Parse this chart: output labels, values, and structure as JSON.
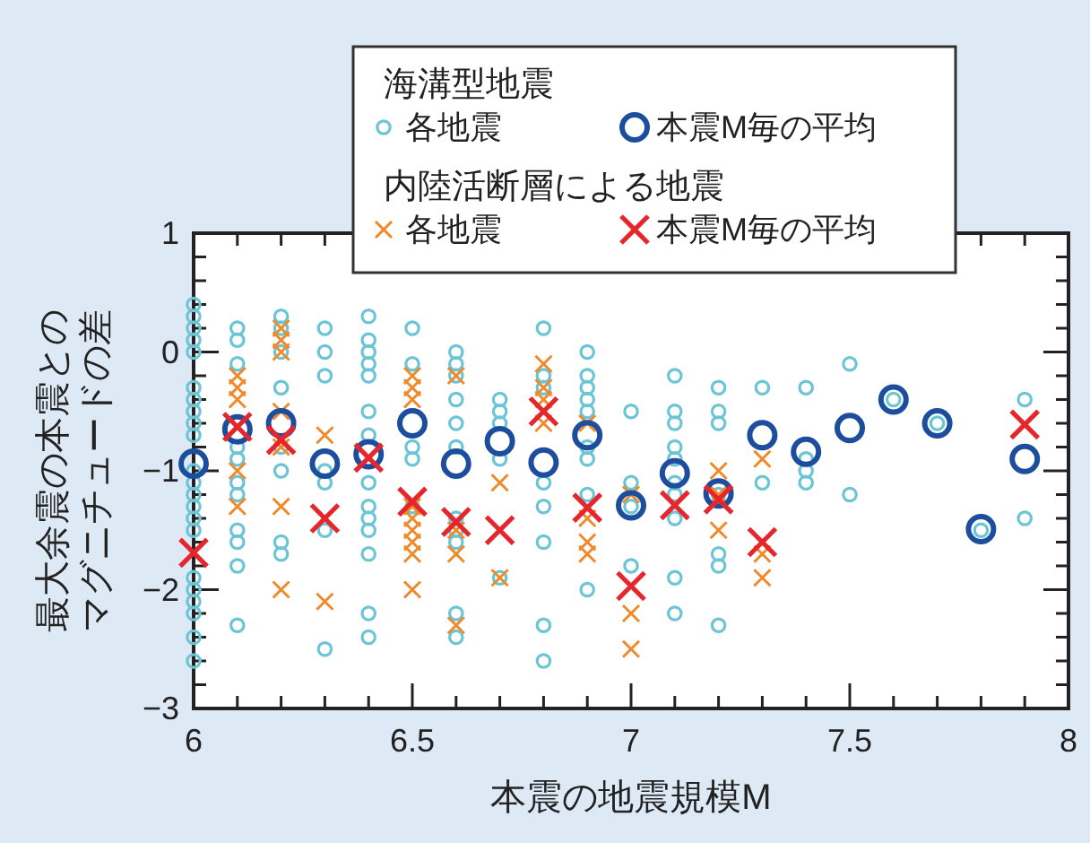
{
  "chart_data": {
    "type": "scatter",
    "xlabel": "本震の地震規模M",
    "ylabel": [
      "最大余震の本震との",
      "マグニチュードの差"
    ],
    "annotations": [
      "海溝型地震",
      "内陸活断層による地震"
    ],
    "xlim": [
      6,
      8
    ],
    "ylim": [
      -3,
      1
    ],
    "xticks": [
      6,
      {
        "value": 6.1,
        "label": null
      },
      {
        "value": 6.2,
        "label": null
      },
      {
        "value": 6.3,
        "label": null
      },
      {
        "value": 6.4,
        "label": null
      },
      6.5,
      {
        "value": 6.6,
        "label": null
      },
      {
        "value": 6.7,
        "label": null
      },
      {
        "value": 6.8,
        "label": null
      },
      {
        "value": 6.9,
        "label": null
      },
      7,
      {
        "value": 7.1,
        "label": null
      },
      {
        "value": 7.2,
        "label": null
      },
      {
        "value": 7.3,
        "label": null
      },
      {
        "value": 7.4,
        "label": null
      },
      7.5,
      {
        "value": 7.6,
        "label": null
      },
      {
        "value": 7.7,
        "label": null
      },
      {
        "value": 7.8,
        "label": null
      },
      {
        "value": 7.9,
        "label": null
      },
      8
    ],
    "yticks": [
      {
        "value": -3,
        "label": "−3"
      },
      {
        "value": -2.8,
        "label": null
      },
      {
        "value": -2.6,
        "label": null
      },
      {
        "value": -2.4,
        "label": null
      },
      {
        "value": -2.2,
        "label": null
      },
      {
        "value": -2,
        "label": "−2"
      },
      {
        "value": -1.8,
        "label": null
      },
      {
        "value": -1.6,
        "label": null
      },
      {
        "value": -1.4,
        "label": null
      },
      {
        "value": -1.2,
        "label": null
      },
      {
        "value": -1,
        "label": "−1"
      },
      {
        "value": -0.8,
        "label": null
      },
      {
        "value": -0.6,
        "label": null
      },
      {
        "value": -0.4,
        "label": null
      },
      {
        "value": -0.2,
        "label": null
      },
      0,
      {
        "value": 0.2,
        "label": null
      },
      {
        "value": 0.4,
        "label": null
      },
      {
        "value": 0.6,
        "label": null
      },
      {
        "value": 0.8,
        "label": null
      },
      1
    ],
    "grid": false,
    "legend": "top",
    "series": [
      {
        "name": "各地震",
        "color": "#6cc5d6",
        "marker": "circle",
        "x": [
          6,
          6,
          6,
          6,
          6,
          6,
          6,
          6,
          6,
          6,
          6,
          6,
          6,
          6,
          6,
          6,
          6,
          6,
          6,
          6,
          6,
          6,
          6.1,
          6.1,
          6.1,
          6.1,
          6.1,
          6.1,
          6.1,
          6.1,
          6.1,
          6.1,
          6.1,
          6.2,
          6.2,
          6.2,
          6.2,
          6.2,
          6.2,
          6.2,
          6.2,
          6.3,
          6.3,
          6.3,
          6.3,
          6.3,
          6.3,
          6.3,
          6.4,
          6.4,
          6.4,
          6.4,
          6.4,
          6.4,
          6.4,
          6.4,
          6.4,
          6.4,
          6.4,
          6.4,
          6.4,
          6.4,
          6.5,
          6.5,
          6.5,
          6.5,
          6.5,
          6.6,
          6.6,
          6.6,
          6.6,
          6.6,
          6.6,
          6.6,
          6.6,
          6.6,
          6.6,
          6.6,
          6.7,
          6.7,
          6.7,
          6.7,
          6.7,
          6.8,
          6.8,
          6.8,
          6.8,
          6.8,
          6.8,
          6.8,
          6.8,
          6.9,
          6.9,
          6.9,
          6.9,
          6.9,
          6.9,
          6.9,
          6.9,
          6.9,
          7,
          7,
          7,
          7,
          7.1,
          7.1,
          7.1,
          7.1,
          7.1,
          7.1,
          7.1,
          7.1,
          7.1,
          7.1,
          7.2,
          7.2,
          7.2,
          7.2,
          7.2,
          7.2,
          7.2,
          7.3,
          7.3,
          7.4,
          7.4,
          7.4,
          7.4,
          7.5,
          7.5,
          7.6,
          7.7,
          7.8,
          7.9,
          7.9
        ],
        "values": [
          0.4,
          0.3,
          0.2,
          0.1,
          0,
          -0.3,
          -0.4,
          -0.5,
          -0.6,
          -0.7,
          -1.0,
          -1.1,
          -1.2,
          -1.3,
          -1.4,
          -1.5,
          -1.9,
          -2.0,
          -2.1,
          -2.2,
          -2.4,
          -2.6,
          0.2,
          0.1,
          -0.1,
          -0.8,
          -0.9,
          -1.1,
          -1.2,
          -1.5,
          -1.6,
          -1.8,
          -2.3,
          0.3,
          0.2,
          0,
          -0.3,
          -0.8,
          -1.0,
          -1.6,
          -1.7,
          0.2,
          0,
          -0.2,
          -1.0,
          -1.1,
          -1.5,
          -2.5,
          0.3,
          0.1,
          0,
          -0.1,
          -0.2,
          -0.5,
          -0.7,
          -1.1,
          -1.3,
          -1.4,
          -1.5,
          -1.7,
          -2.2,
          -2.4,
          0.2,
          -0.1,
          -0.8,
          -0.9,
          -1.3,
          0,
          -0.1,
          -0.2,
          -0.4,
          -0.6,
          -0.8,
          -1.4,
          -1.5,
          -1.6,
          -2.2,
          -2.4,
          -0.4,
          -0.5,
          -0.6,
          -0.9,
          -1.9,
          0.2,
          -0.2,
          -0.3,
          -1.1,
          -1.3,
          -1.6,
          -2.3,
          -2.6,
          0,
          -0.2,
          -0.3,
          -0.4,
          -0.5,
          -0.8,
          -0.9,
          -1.2,
          -2.0,
          -0.5,
          -1.1,
          -1.3,
          -1.8,
          -0.2,
          -0.5,
          -0.6,
          -0.8,
          -0.9,
          -1.1,
          -1.2,
          -1.4,
          -1.9,
          -2.2,
          -0.3,
          -0.5,
          -0.6,
          -1.2,
          -1.7,
          -1.8,
          -2.3,
          -0.3,
          -1.1,
          -0.3,
          -0.9,
          -1.0,
          -1.1,
          -0.1,
          -1.2,
          -0.4,
          -0.6,
          -1.5,
          -0.4,
          -1.4
        ]
      },
      {
        "name": "各地震",
        "color": "#f0892a",
        "marker": "cross",
        "x": [
          6.1,
          6.1,
          6.1,
          6.1,
          6.1,
          6.2,
          6.2,
          6.2,
          6.2,
          6.2,
          6.2,
          6.2,
          6.3,
          6.3,
          6.5,
          6.5,
          6.5,
          6.5,
          6.5,
          6.5,
          6.5,
          6.5,
          6.5,
          6.6,
          6.6,
          6.6,
          6.6,
          6.7,
          6.7,
          6.8,
          6.8,
          6.8,
          6.8,
          6.9,
          6.9,
          6.9,
          6.9,
          7,
          7,
          7,
          7.2,
          7.2,
          7.2,
          7.3,
          7.3,
          7.3
        ],
        "values": [
          -0.2,
          -0.3,
          -0.4,
          -1.0,
          -1.3,
          0.2,
          0.1,
          0,
          -0.5,
          -0.8,
          -1.3,
          -2.0,
          -0.7,
          -2.1,
          -0.2,
          -0.3,
          -0.4,
          -1.3,
          -1.4,
          -1.5,
          -1.6,
          -1.7,
          -2.0,
          -0.2,
          -1.5,
          -1.7,
          -2.3,
          -1.1,
          -1.9,
          -0.1,
          -0.3,
          -0.4,
          -0.6,
          -0.6,
          -1.4,
          -1.6,
          -1.7,
          -1.2,
          -2.2,
          -2.5,
          -1.0,
          -1.2,
          -1.5,
          -0.9,
          -1.7,
          -1.9
        ]
      },
      {
        "name": "本震M毎の平均",
        "color": "#1d4e9e",
        "marker": "circle",
        "x": [
          6,
          6.1,
          6.2,
          6.3,
          6.4,
          6.5,
          6.6,
          6.7,
          6.8,
          6.9,
          7,
          7.1,
          7.2,
          7.3,
          7.4,
          7.5,
          7.6,
          7.7,
          7.8,
          7.9
        ],
        "values": [
          -0.94,
          -0.65,
          -0.6,
          -0.94,
          -0.86,
          -0.6,
          -0.94,
          -0.75,
          -0.93,
          -0.7,
          -1.29,
          -1.02,
          -1.19,
          -0.7,
          -0.84,
          -0.64,
          -0.4,
          -0.6,
          -1.49,
          -0.9
        ]
      },
      {
        "name": "本震M毎の平均",
        "color": "#e5262c",
        "marker": "cross",
        "x": [
          6,
          6.1,
          6.2,
          6.3,
          6.4,
          6.5,
          6.6,
          6.7,
          6.8,
          6.9,
          7,
          7.1,
          7.2,
          7.3,
          7.9
        ],
        "values": [
          -1.69,
          -0.63,
          -0.74,
          -1.4,
          -0.89,
          -1.26,
          -1.43,
          -1.5,
          -0.5,
          -1.31,
          -1.97,
          -1.29,
          -1.24,
          -1.6,
          -0.61
        ]
      }
    ]
  }
}
